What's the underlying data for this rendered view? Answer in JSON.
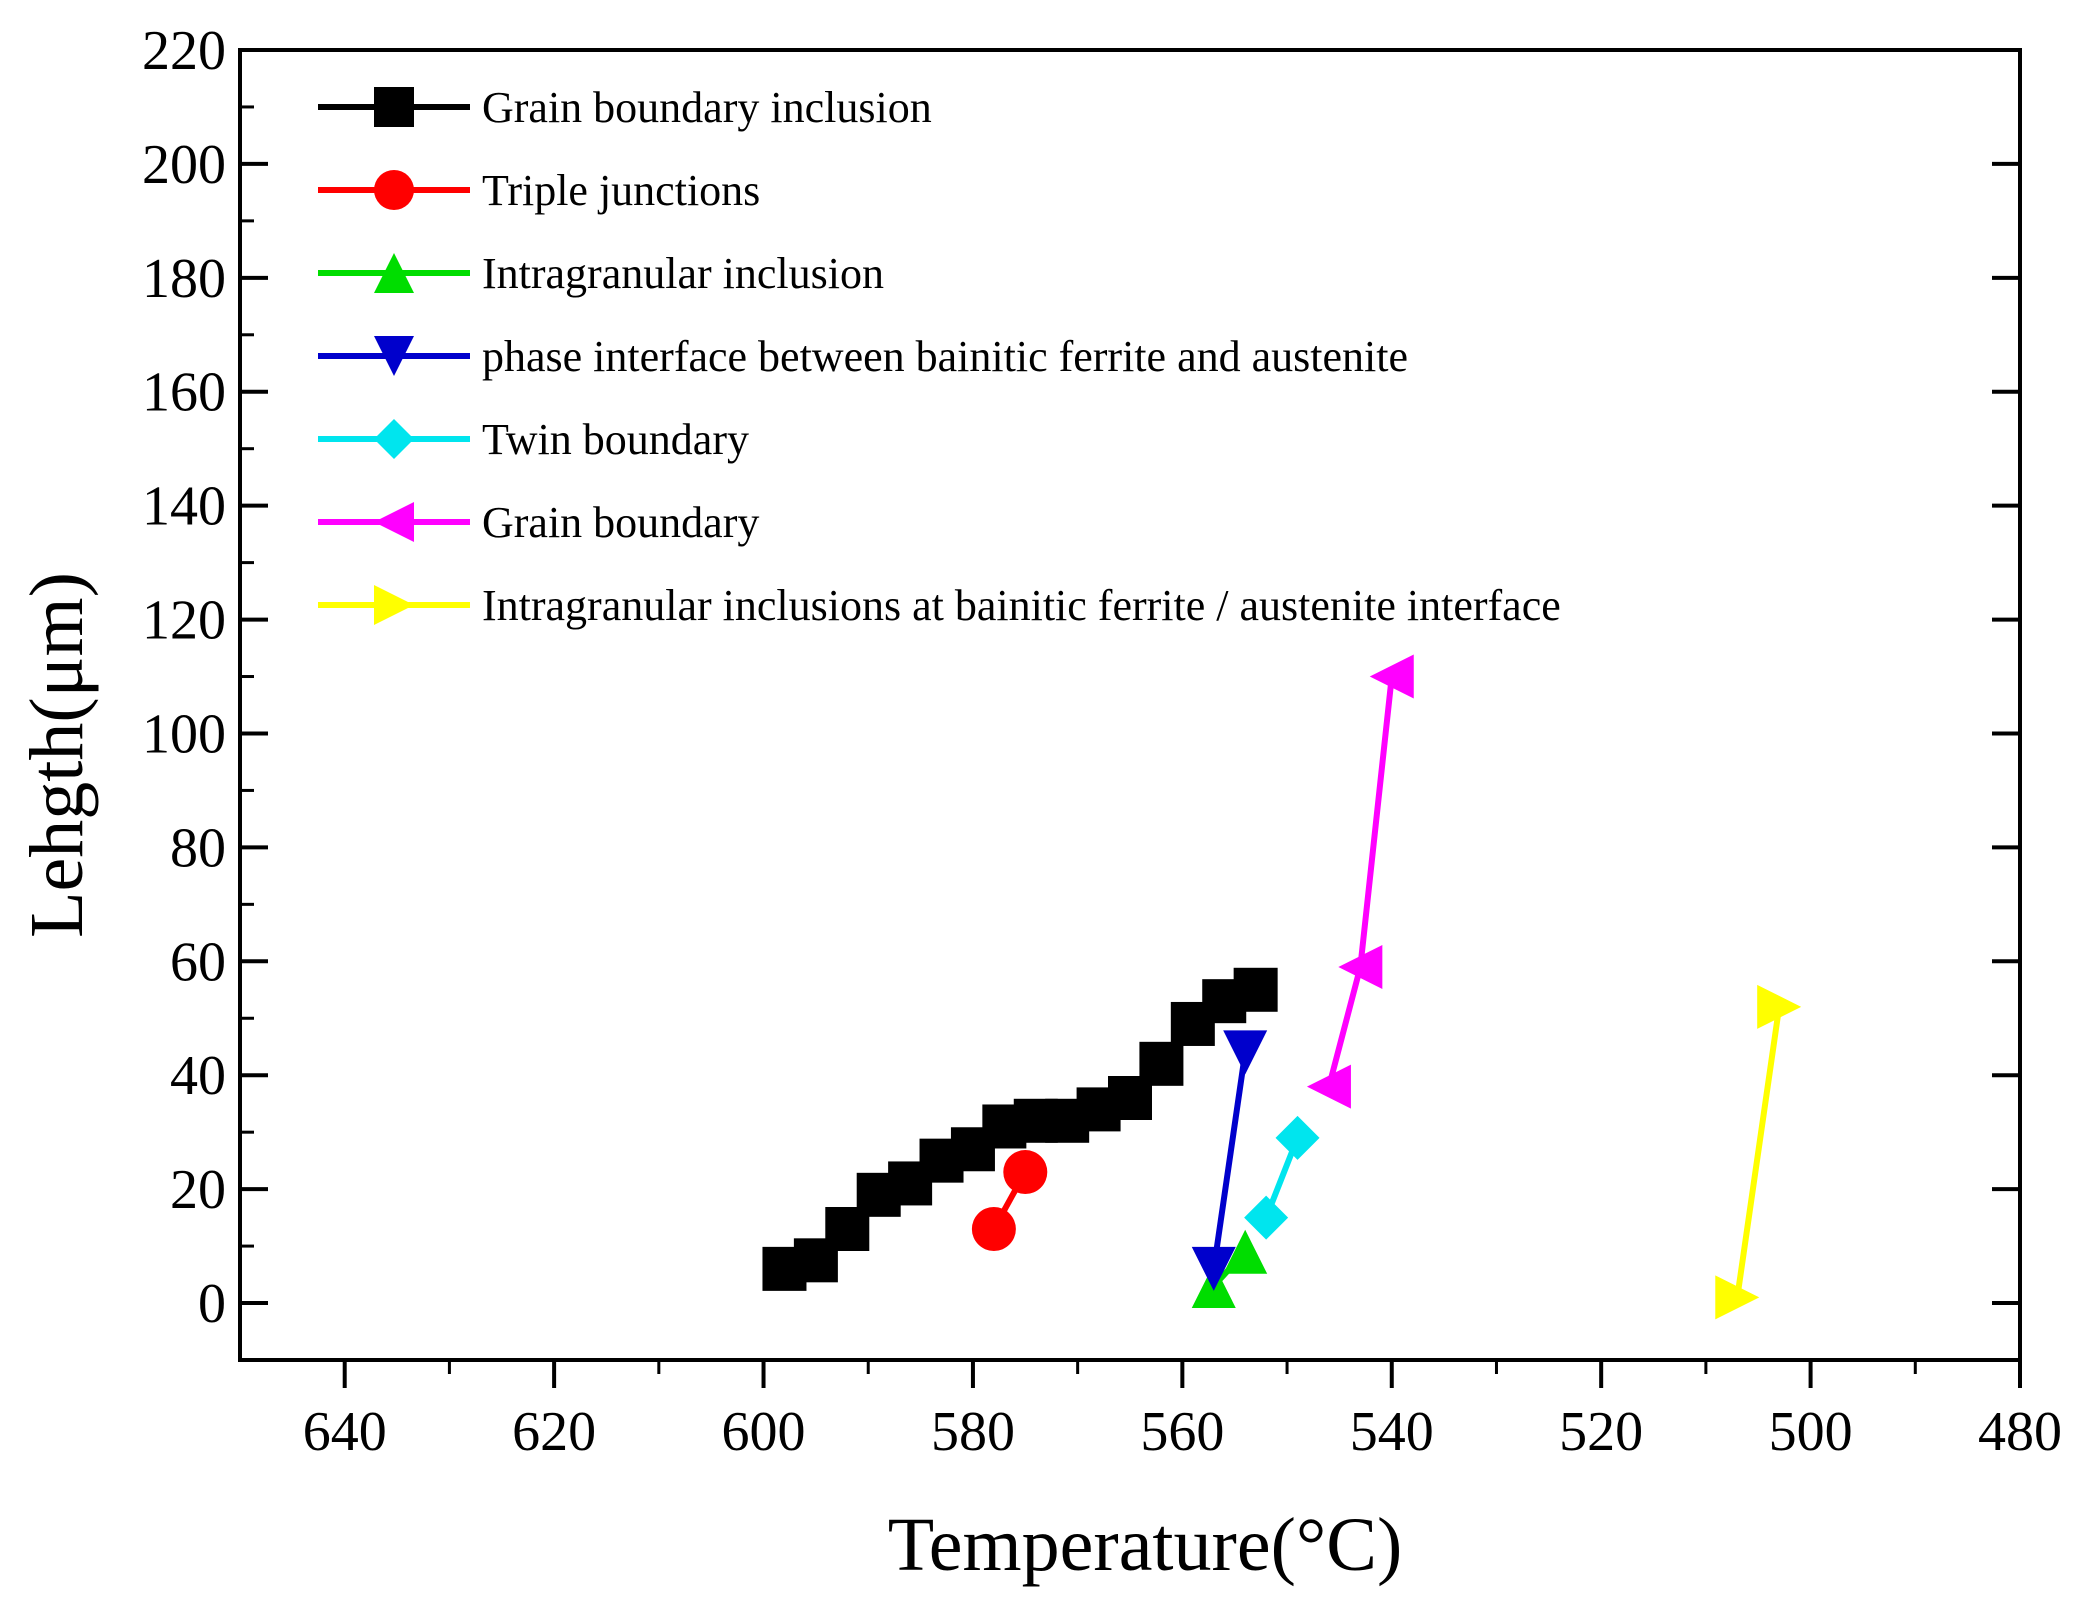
{
  "chart_data": {
    "type": "line",
    "title": "",
    "xlabel": "Temperature(°C)",
    "ylabel": "Lehgth(μm)",
    "xlim": [
      650,
      480
    ],
    "ylim": [
      -10,
      220
    ],
    "x_reversed": true,
    "x_ticks": [
      640,
      620,
      600,
      580,
      560,
      540,
      520,
      500,
      480
    ],
    "y_ticks": [
      0,
      20,
      40,
      60,
      80,
      100,
      120,
      140,
      160,
      180,
      200,
      220
    ],
    "legend_position": "top-left",
    "series": [
      {
        "name": "Grain boundary inclusion",
        "color": "#000000",
        "marker": "square",
        "x": [
          598,
          595,
          592,
          589,
          586,
          583,
          580,
          577,
          574,
          571,
          568,
          565,
          562,
          559,
          556,
          553
        ],
        "y": [
          6,
          7.5,
          13,
          19,
          21,
          25,
          27,
          31,
          32,
          32,
          34,
          36,
          42,
          49,
          53,
          55
        ]
      },
      {
        "name": "Triple junctions",
        "color": "#ff0000",
        "marker": "circle",
        "x": [
          578,
          575
        ],
        "y": [
          13,
          23
        ]
      },
      {
        "name": "Intragranular inclusion",
        "color": "#00dd00",
        "marker": "triangle-up",
        "x": [
          557,
          554
        ],
        "y": [
          3,
          9
        ]
      },
      {
        "name": "phase interface between bainitic ferrite and austenite",
        "color": "#0000cc",
        "marker": "triangle-down",
        "x": [
          557,
          554
        ],
        "y": [
          6,
          44
        ]
      },
      {
        "name": "Twin boundary",
        "color": "#00e5ee",
        "marker": "diamond",
        "x": [
          552,
          549
        ],
        "y": [
          15,
          29
        ]
      },
      {
        "name": "Grain boundary",
        "color": "#ff00ff",
        "marker": "triangle-left",
        "x": [
          546,
          543,
          540
        ],
        "y": [
          38,
          59,
          110
        ]
      },
      {
        "name": "Intragranular inclusions at bainitic ferrite / austenite interface",
        "color": "#ffff00",
        "marker": "triangle-right",
        "x": [
          507,
          503
        ],
        "y": [
          1,
          52
        ]
      }
    ]
  }
}
